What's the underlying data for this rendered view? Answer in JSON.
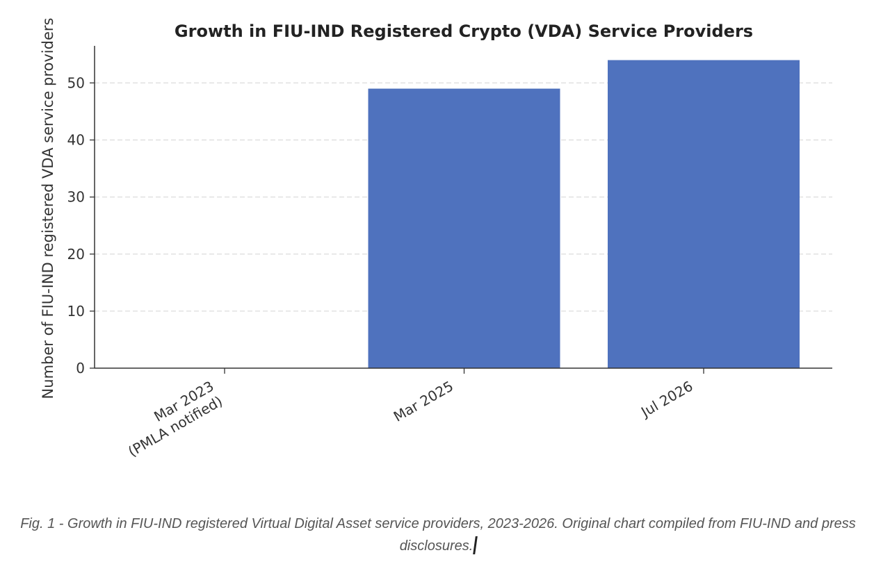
{
  "chart_data": {
    "type": "bar",
    "title": "Growth in FIU-IND Registered Crypto (VDA) Service Providers",
    "xlabel": "",
    "ylabel": "Number of FIU-IND registered VDA service providers",
    "categories": [
      "Mar 2023\n(PMLA notified)",
      "Mar 2025",
      "Jul 2026"
    ],
    "values": [
      0,
      49,
      54
    ],
    "ylim": [
      0,
      56.5
    ],
    "yticks": [
      0,
      10,
      20,
      30,
      40,
      50
    ],
    "grid": "horizontal dashed",
    "bar_color": "#4f72be"
  },
  "caption": {
    "text": "Fig. 1 - Growth in FIU-IND registered Virtual Digital Asset service providers, 2023-2026. Original chart compiled from FIU-IND and press disclosures."
  }
}
